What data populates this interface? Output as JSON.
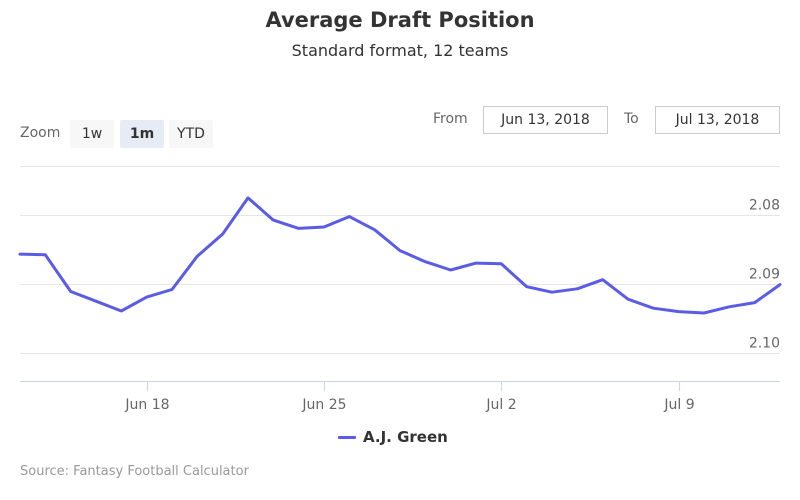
{
  "header": {
    "title": "Average Draft Position",
    "subtitle": "Standard format, 12 teams"
  },
  "zoom": {
    "label": "Zoom",
    "buttons": [
      "1w",
      "1m",
      "YTD"
    ],
    "active": "1m"
  },
  "range": {
    "from_label": "From",
    "from_value": "Jun 13, 2018",
    "to_label": "To",
    "to_value": "Jul 13, 2018"
  },
  "credits": "Source: Fantasy Football Calculator",
  "colors": {
    "series": "#5a5ce6",
    "grid": "#e6e6e6",
    "axis": "#ccd6eb"
  },
  "chart_data": {
    "type": "line",
    "title": "Average Draft Position",
    "subtitle": "Standard format, 12 teams",
    "xlabel": "",
    "ylabel": "",
    "y_reversed": true,
    "y_axis_side": "right",
    "ylim": [
      2.073,
      2.104
    ],
    "grid": true,
    "legend": "bottom-center",
    "x_ticks": [
      "Jun 18",
      "Jun 25",
      "Jul 2",
      "Jul 9"
    ],
    "y_ticks": [
      "2.08",
      "2.09",
      "2.10"
    ],
    "series": [
      {
        "name": "A.J. Green",
        "x": [
          "2018-06-13",
          "2018-06-14",
          "2018-06-15",
          "2018-06-16",
          "2018-06-17",
          "2018-06-18",
          "2018-06-19",
          "2018-06-20",
          "2018-06-21",
          "2018-06-22",
          "2018-06-23",
          "2018-06-24",
          "2018-06-25",
          "2018-06-26",
          "2018-06-27",
          "2018-06-28",
          "2018-06-29",
          "2018-06-30",
          "2018-07-01",
          "2018-07-02",
          "2018-07-03",
          "2018-07-04",
          "2018-07-05",
          "2018-07-06",
          "2018-07-07",
          "2018-07-08",
          "2018-07-09",
          "2018-07-10",
          "2018-07-11",
          "2018-07-12",
          "2018-07-13"
        ],
        "values": [
          2.0857,
          2.0858,
          2.0911,
          2.0925,
          2.0939,
          2.0919,
          2.0908,
          2.086,
          2.0828,
          2.0776,
          2.0808,
          2.082,
          2.0818,
          2.0803,
          2.0822,
          2.0852,
          2.0868,
          2.088,
          2.087,
          2.0871,
          2.0904,
          2.0912,
          2.0907,
          2.0894,
          2.0922,
          2.0935,
          2.094,
          2.0942,
          2.0933,
          2.0927,
          2.0901
        ]
      }
    ]
  }
}
